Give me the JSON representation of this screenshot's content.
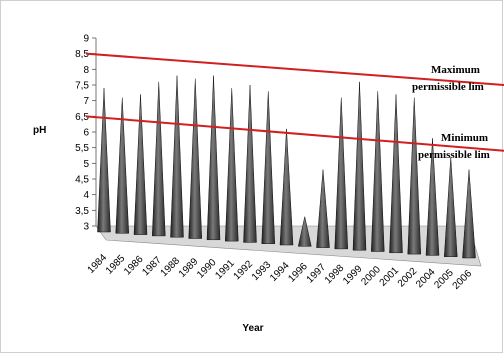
{
  "chart_data": {
    "type": "area",
    "title": "",
    "xlabel": "Year",
    "ylabel": "pH",
    "ylim": [
      3,
      8.5
    ],
    "yticks": [
      "3",
      "3,5",
      "4",
      "4,5",
      "5",
      "5,5",
      "6",
      "6,5",
      "7",
      "7,5",
      "8",
      "8,5",
      "9"
    ],
    "categories": [
      "1984",
      "1985",
      "1986",
      "1987",
      "1988",
      "1989",
      "1990",
      "1991",
      "1992",
      "1993",
      "1994",
      "1996",
      "1997",
      "1998",
      "1999",
      "2000",
      "2001",
      "2002",
      "2004",
      "2005",
      "2006"
    ],
    "series": [
      {
        "values": [
          7.4,
          7.1,
          7.2,
          7.6,
          7.8,
          7.7,
          7.8,
          7.4,
          7.5,
          7.3,
          6.1,
          3.3,
          4.8,
          7.1,
          7.6,
          7.3,
          7.2,
          7.1,
          5.8,
          5.2,
          4.8
        ],
        "fill_color": "#3a3a3a"
      }
    ],
    "reference_lines": [
      {
        "label_line1": "Maximum",
        "label_line2": "permissible lim",
        "start_value": 8.5,
        "end_value": 7.5,
        "color": "#d02020"
      },
      {
        "label_line1": "Minimum",
        "label_line2": "permissible lim",
        "start_value": 6.5,
        "end_value": 5.4,
        "color": "#d02020"
      }
    ],
    "grid": false,
    "legend": "none"
  }
}
